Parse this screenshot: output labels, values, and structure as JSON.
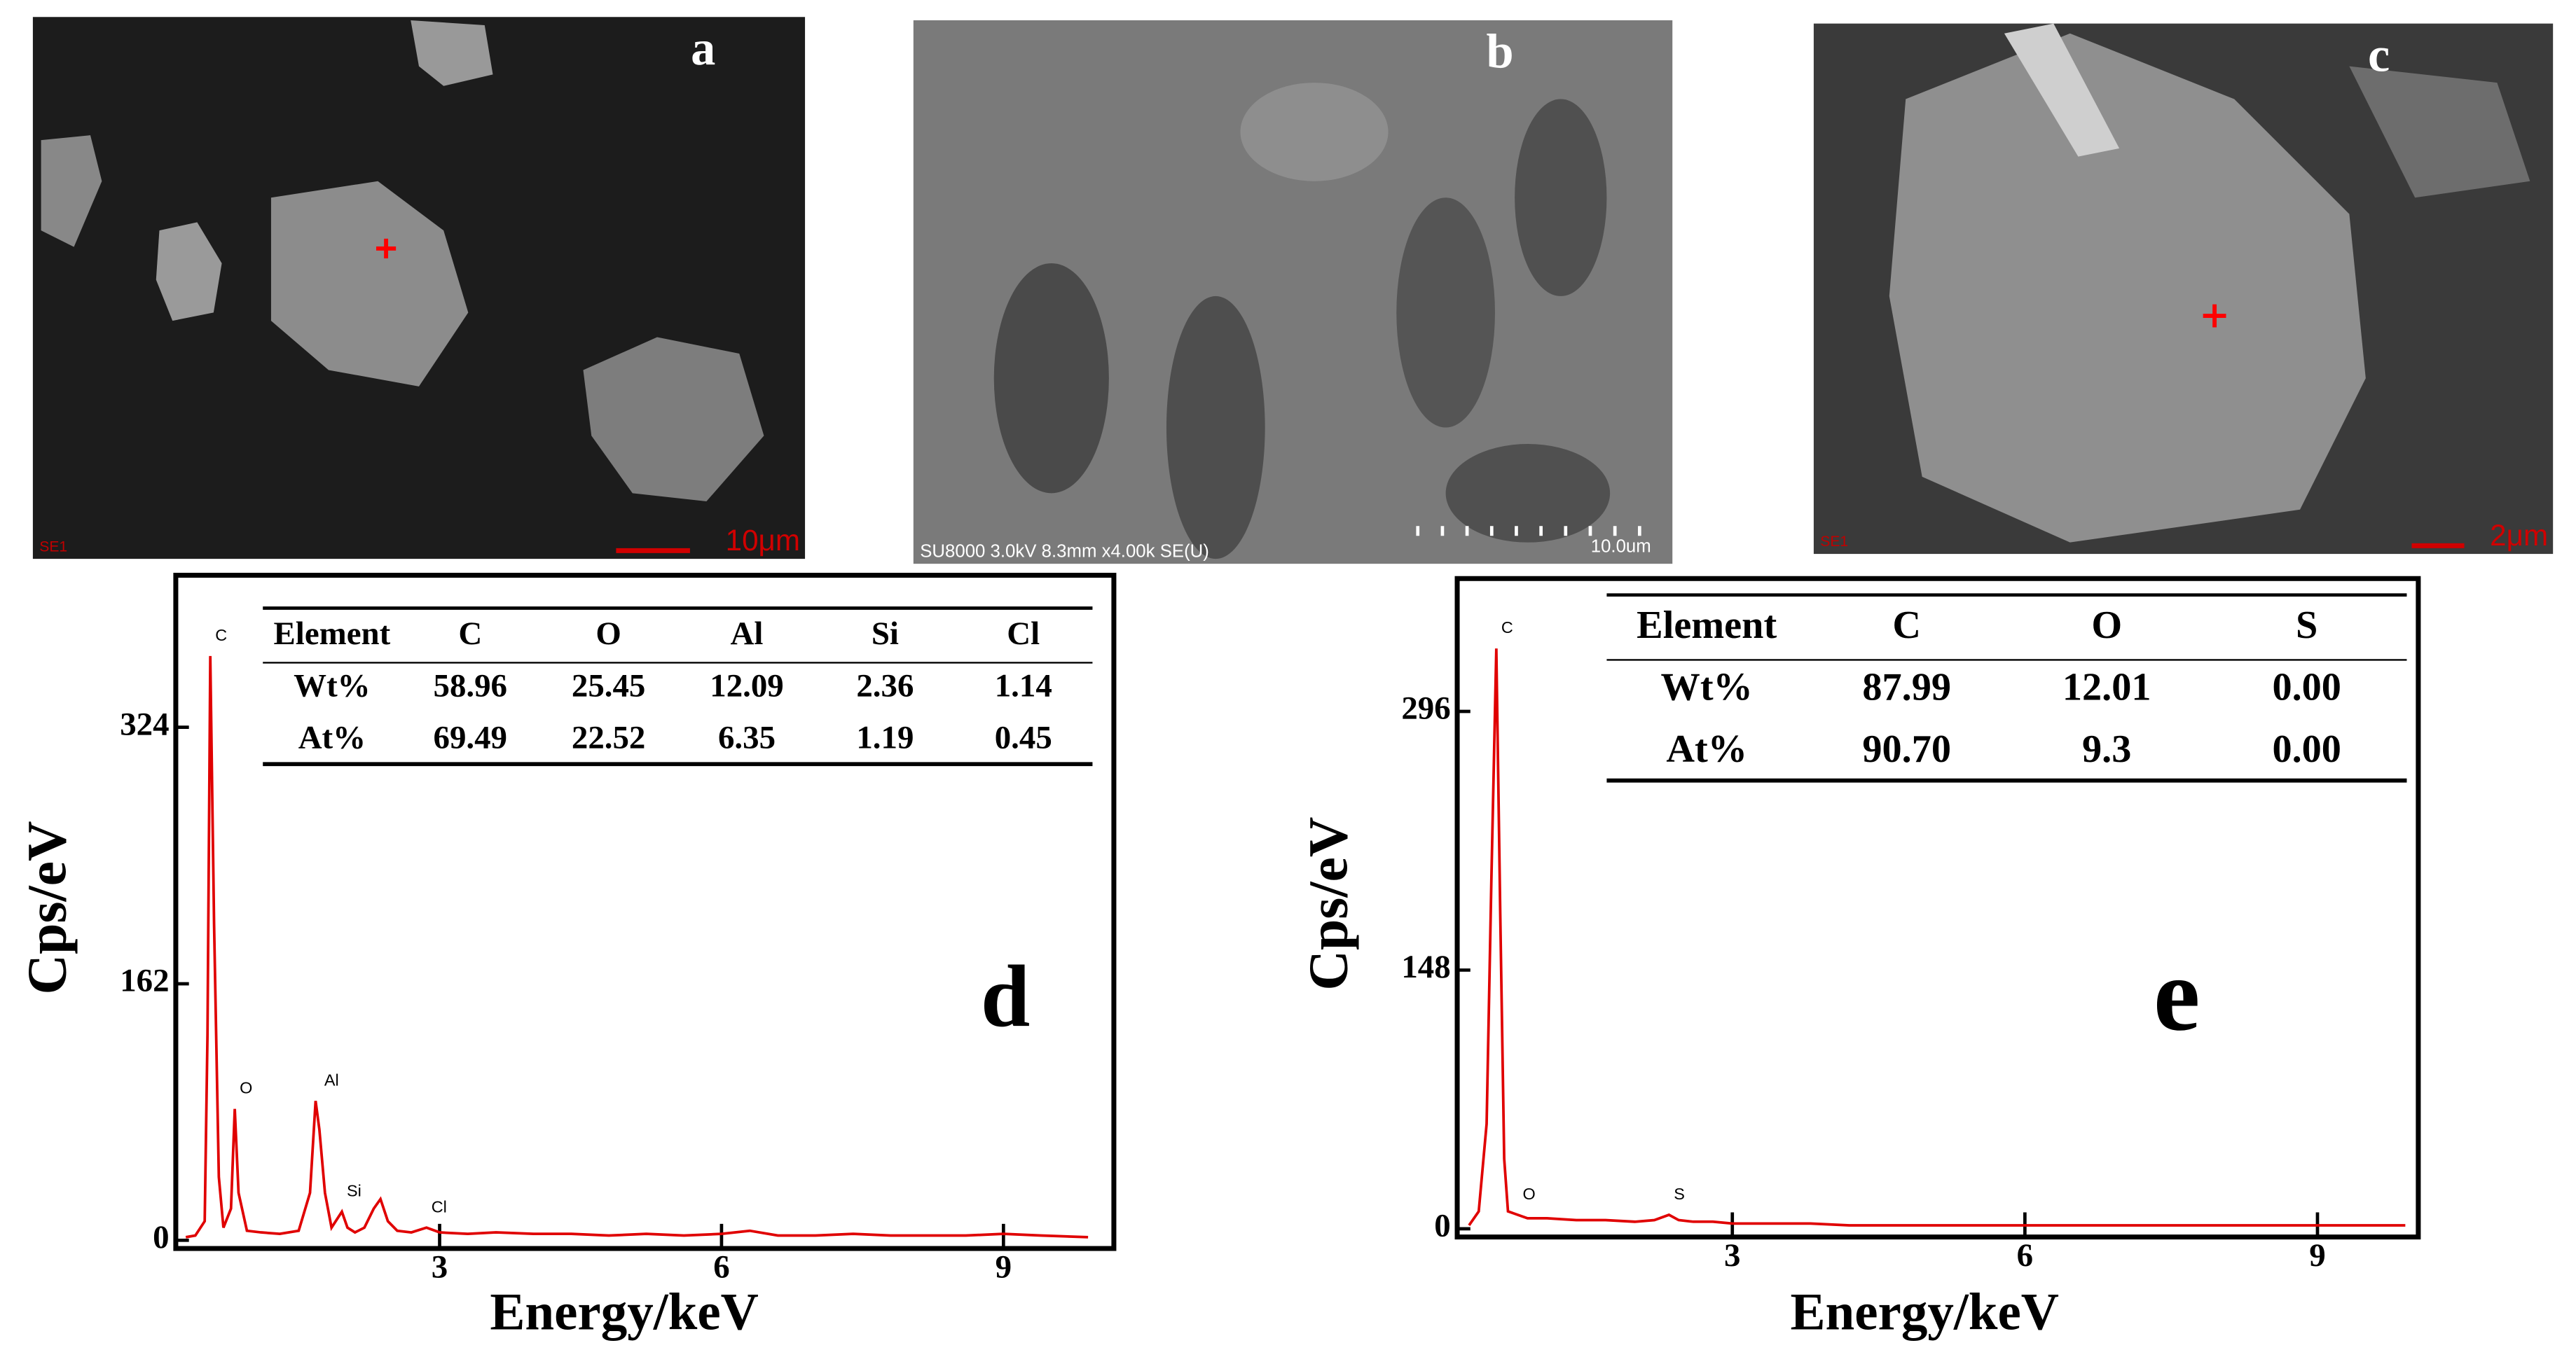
{
  "images": [
    {
      "letter": "a",
      "footer_left": "SE1",
      "scale": "10μm"
    },
    {
      "letter": "b",
      "footer_left": "SU8000 3.0kV 8.3mm x4.00k SE(U)",
      "scale": "10.0um"
    },
    {
      "letter": "c",
      "footer_left": "SE1",
      "scale": "2μm"
    }
  ],
  "chart_data": [
    {
      "type": "line",
      "letter": "d",
      "y_label": "Cps/eV",
      "x_label": "Energy/keV",
      "color": "#e00000",
      "xlim": [
        0.28,
        10
      ],
      "ylim": [
        0,
        420
      ],
      "xticks": [
        3,
        6,
        9
      ],
      "yticks": [
        0,
        162,
        324
      ],
      "x": [
        0.3,
        0.4,
        0.5,
        0.53,
        0.56,
        0.6,
        0.65,
        0.7,
        0.78,
        0.82,
        0.86,
        0.95,
        1.1,
        1.3,
        1.5,
        1.62,
        1.68,
        1.72,
        1.78,
        1.85,
        1.96,
        2.02,
        2.1,
        2.2,
        2.3,
        2.37,
        2.45,
        2.55,
        2.7,
        2.86,
        3,
        3.3,
        3.6,
        4,
        4.4,
        4.8,
        5.2,
        5.6,
        6,
        6.3,
        6.6,
        7,
        7.4,
        7.8,
        8.2,
        8.6,
        9,
        9.4,
        9.9
      ],
      "values": [
        2,
        3,
        12,
        130,
        369,
        200,
        40,
        8,
        20,
        83,
        30,
        6,
        5,
        4,
        6,
        30,
        88,
        70,
        30,
        8,
        18,
        8,
        5,
        8,
        20,
        26,
        12,
        6,
        5,
        8,
        5,
        4,
        5,
        4,
        4,
        3,
        4,
        3,
        4,
        6,
        3,
        3,
        4,
        3,
        3,
        3,
        4,
        3,
        2
      ],
      "peaks": [
        {
          "label": "C",
          "x": 0.56,
          "y": 369
        },
        {
          "label": "O",
          "x": 0.82,
          "y": 83
        },
        {
          "label": "Al",
          "x": 1.72,
          "y": 88
        },
        {
          "label": "Si",
          "x": 1.96,
          "y": 18
        },
        {
          "label": "Cl",
          "x": 2.86,
          "y": 8
        }
      ],
      "table": {
        "header": [
          "Element",
          "C",
          "O",
          "Al",
          "Si",
          "Cl"
        ],
        "rows": [
          [
            "Wt%",
            "58.96",
            "25.45",
            "12.09",
            "2.36",
            "1.14"
          ],
          [
            "At%",
            "69.49",
            "22.52",
            "6.35",
            "1.19",
            "0.45"
          ]
        ]
      }
    },
    {
      "type": "line",
      "letter": "e",
      "y_label": "Cps/eV",
      "x_label": "Energy/keV",
      "color": "#e00000",
      "xlim": [
        0.28,
        10
      ],
      "ylim": [
        0,
        372
      ],
      "xticks": [
        3,
        6,
        9
      ],
      "yticks": [
        0,
        148,
        296
      ],
      "x": [
        0.3,
        0.4,
        0.48,
        0.53,
        0.58,
        0.62,
        0.66,
        0.7,
        0.8,
        0.9,
        1.1,
        1.4,
        1.7,
        2,
        2.2,
        2.35,
        2.45,
        2.6,
        2.8,
        3,
        3.4,
        3.8,
        4.2,
        4.6,
        5,
        5.4,
        5.8,
        6.2,
        6.6,
        7,
        7.4,
        7.8,
        8.2,
        8.6,
        9,
        9.4,
        9.9
      ],
      "values": [
        2,
        10,
        60,
        200,
        332,
        180,
        40,
        10,
        8,
        6,
        6,
        5,
        5,
        4,
        5,
        8,
        5,
        4,
        4,
        3,
        3,
        3,
        2,
        2,
        2,
        2,
        2,
        2,
        2,
        2,
        2,
        2,
        2,
        2,
        2,
        2,
        2
      ],
      "peaks": [
        {
          "label": "C",
          "x": 0.58,
          "y": 332
        },
        {
          "label": "O",
          "x": 0.8,
          "y": 8
        },
        {
          "label": "S",
          "x": 2.35,
          "y": 8
        }
      ],
      "table": {
        "header": [
          "Element",
          "C",
          "O",
          "S"
        ],
        "rows": [
          [
            "Wt%",
            "87.99",
            "12.01",
            "0.00"
          ],
          [
            "At%",
            "90.70",
            "9.3",
            "0.00"
          ]
        ]
      }
    }
  ]
}
